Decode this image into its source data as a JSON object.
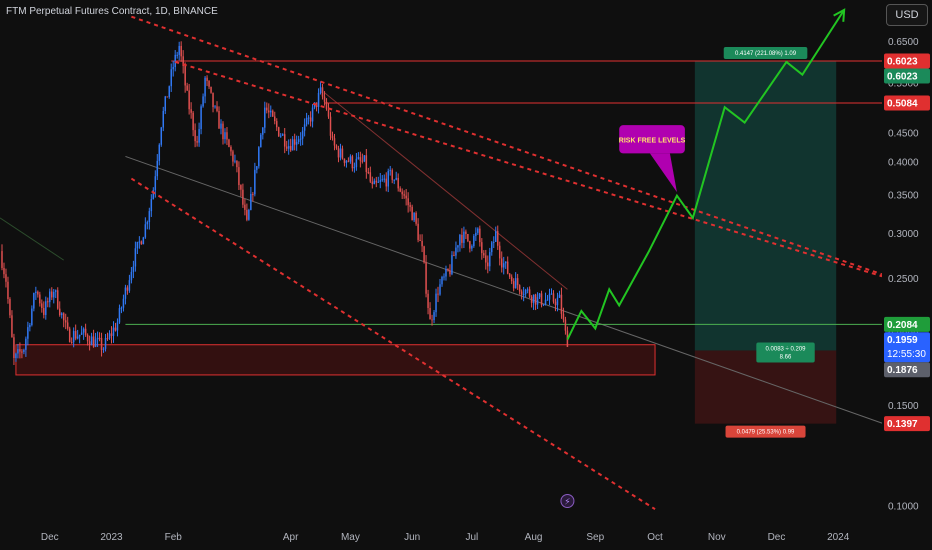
{
  "header": {
    "symbol_title": "FTM Perpetual Futures Contract, 1D, BINANCE",
    "currency_button": "USD"
  },
  "colors": {
    "background": "#0f0f0f",
    "candle_up": "#3179f5",
    "candle_down": "#e05050",
    "channel_line": "#e03030",
    "projection": "#22c522",
    "support_line": "#4caf50",
    "target_zone": "#123b35",
    "stop_zone": "#3b1414",
    "annotation_box": "#b000b0"
  },
  "chart_data": {
    "type": "candlestick",
    "title": "FTM Perpetual Futures Contract, 1D, BINANCE",
    "y_axis": {
      "scale": "log",
      "range": [
        0.094,
        0.77
      ],
      "ticks": [
        "0.1000",
        "0.1500",
        "0.2000",
        "0.2500",
        "0.3000",
        "0.3500",
        "0.4000",
        "0.4500",
        "0.5000",
        "0.5500",
        "0.6000",
        "0.6500"
      ]
    },
    "x_axis": {
      "start": "2022-11-06",
      "end": "2024-01-23",
      "ticks": [
        {
          "label": "Dec",
          "date": "2022-12-01"
        },
        {
          "label": "2023",
          "date": "2023-01-01"
        },
        {
          "label": "Feb",
          "date": "2023-02-01"
        },
        {
          "label": "Apr",
          "date": "2023-04-01"
        },
        {
          "label": "May",
          "date": "2023-05-01"
        },
        {
          "label": "Jun",
          "date": "2023-06-01"
        },
        {
          "label": "Jul",
          "date": "2023-07-01"
        },
        {
          "label": "Aug",
          "date": "2023-08-01"
        },
        {
          "label": "Sep",
          "date": "2023-09-01"
        },
        {
          "label": "Oct",
          "date": "2023-10-01"
        },
        {
          "label": "Nov",
          "date": "2023-11-01"
        },
        {
          "label": "Dec",
          "date": "2023-12-01"
        },
        {
          "label": "2024",
          "date": "2024-01-01"
        }
      ]
    },
    "price_path": [
      [
        "2022-11-06",
        0.28
      ],
      [
        "2022-11-09",
        0.25
      ],
      [
        "2022-11-13",
        0.18
      ],
      [
        "2022-11-18",
        0.19
      ],
      [
        "2022-11-24",
        0.24
      ],
      [
        "2022-11-28",
        0.22
      ],
      [
        "2022-12-03",
        0.24
      ],
      [
        "2022-12-10",
        0.2
      ],
      [
        "2022-12-18",
        0.2
      ],
      [
        "2022-12-28",
        0.19
      ],
      [
        "2023-01-04",
        0.21
      ],
      [
        "2023-01-12",
        0.27
      ],
      [
        "2023-01-18",
        0.31
      ],
      [
        "2023-01-22",
        0.36
      ],
      [
        "2023-01-26",
        0.47
      ],
      [
        "2023-02-01",
        0.59
      ],
      [
        "2023-02-04",
        0.64
      ],
      [
        "2023-02-08",
        0.52
      ],
      [
        "2023-02-13",
        0.43
      ],
      [
        "2023-02-17",
        0.56
      ],
      [
        "2023-02-22",
        0.49
      ],
      [
        "2023-02-27",
        0.44
      ],
      [
        "2023-03-04",
        0.4
      ],
      [
        "2023-03-10",
        0.31
      ],
      [
        "2023-03-14",
        0.38
      ],
      [
        "2023-03-19",
        0.5
      ],
      [
        "2023-03-25",
        0.46
      ],
      [
        "2023-03-31",
        0.43
      ],
      [
        "2023-04-07",
        0.45
      ],
      [
        "2023-04-12",
        0.49
      ],
      [
        "2023-04-16",
        0.53
      ],
      [
        "2023-04-19",
        0.5
      ],
      [
        "2023-04-22",
        0.43
      ],
      [
        "2023-04-27",
        0.41
      ],
      [
        "2023-05-02",
        0.4
      ],
      [
        "2023-05-08",
        0.4
      ],
      [
        "2023-05-12",
        0.36
      ],
      [
        "2023-05-17",
        0.37
      ],
      [
        "2023-05-22",
        0.38
      ],
      [
        "2023-05-28",
        0.35
      ],
      [
        "2023-06-02",
        0.32
      ],
      [
        "2023-06-06",
        0.28
      ],
      [
        "2023-06-10",
        0.21
      ],
      [
        "2023-06-14",
        0.24
      ],
      [
        "2023-06-20",
        0.26
      ],
      [
        "2023-06-25",
        0.3
      ],
      [
        "2023-06-30",
        0.29
      ],
      [
        "2023-07-04",
        0.3
      ],
      [
        "2023-07-08",
        0.26
      ],
      [
        "2023-07-13",
        0.3
      ],
      [
        "2023-07-16",
        0.27
      ],
      [
        "2023-07-21",
        0.25
      ],
      [
        "2023-07-27",
        0.24
      ],
      [
        "2023-08-03",
        0.23
      ],
      [
        "2023-08-10",
        0.23
      ],
      [
        "2023-08-14",
        0.23
      ],
      [
        "2023-08-17",
        0.2
      ],
      [
        "2023-08-18",
        0.196
      ]
    ],
    "projection_path": [
      [
        "2023-08-18",
        0.196
      ],
      [
        "2023-08-25",
        0.22
      ],
      [
        "2023-09-01",
        0.205
      ],
      [
        "2023-09-08",
        0.24
      ],
      [
        "2023-09-13",
        0.225
      ],
      [
        "2023-09-28",
        0.28
      ],
      [
        "2023-10-12",
        0.35
      ],
      [
        "2023-10-20",
        0.32
      ],
      [
        "2023-11-05",
        0.5
      ],
      [
        "2023-11-15",
        0.47
      ],
      [
        "2023-12-06",
        0.6
      ],
      [
        "2023-12-14",
        0.57
      ],
      [
        "2024-01-04",
        0.74
      ]
    ],
    "horizontal_levels": [
      {
        "price": 0.6023,
        "label": "0.6023",
        "color": "#e03030",
        "from_date": "2023-01-31"
      },
      {
        "price": 0.5084,
        "label": "0.5084",
        "color": "#e03030",
        "from_date": "2023-04-18"
      },
      {
        "price": 0.2084,
        "label": "0.2084",
        "color": "#4caf50",
        "from_date": "2023-01-08"
      }
    ],
    "price_labels": [
      {
        "text": "0.6023",
        "price": 0.6023,
        "color": "#e03030"
      },
      {
        "text": "0.6023",
        "price": 0.6023,
        "color": "#1b8a5a"
      },
      {
        "text": "0.5084",
        "price": 0.5084,
        "color": "#e03030"
      },
      {
        "text": "0.2084",
        "price": 0.2084,
        "color": "#1f9d3a"
      },
      {
        "text": "0.1959",
        "price": 0.1959,
        "color": "#2962ff",
        "subtext": "12:55:30"
      },
      {
        "text": "0.1876",
        "price": 0.1876,
        "color": "#5d606b"
      },
      {
        "text": "0.1397",
        "price": 0.1397,
        "color": "#e03030"
      }
    ],
    "channel_lines": [
      {
        "from": [
          "2023-01-11",
          0.72
        ],
        "to": [
          "2024-01-23",
          0.255
        ]
      },
      {
        "from": [
          "2023-01-11",
          0.375
        ],
        "to": [
          "2023-10-01",
          0.099
        ]
      },
      {
        "from": [
          "2023-02-02",
          0.6
        ],
        "to": [
          "2024-01-23",
          0.253
        ]
      }
    ],
    "trend_lines": [
      {
        "from": [
          "2022-11-06",
          0.32
        ],
        "to": [
          "2022-12-08",
          0.27
        ],
        "color": "#2c4c2c"
      },
      {
        "from": [
          "2023-01-08",
          0.41
        ],
        "to": [
          "2024-01-23",
          0.14
        ],
        "color": "#666666"
      },
      {
        "from": [
          "2023-04-18",
          0.53
        ],
        "to": [
          "2023-08-18",
          0.24
        ],
        "color": "#803030"
      }
    ],
    "support_zone": {
      "from": "2022-11-14",
      "to": "2023-10-01",
      "top": 0.192,
      "bottom": 0.17
    },
    "position": {
      "start": "2023-10-21",
      "end": "2023-12-31",
      "entry": 0.1876,
      "target": 0.6023,
      "stop": 0.1397,
      "target_label": "0.4147 (221.08%) 1.09",
      "center_label_line1": "0.0083 ÷ 0.209",
      "center_label_line2": "8.66",
      "stop_label": "0.0479 (25.53%) 0.99"
    },
    "annotation": {
      "text": "RISK FREE LEVELS",
      "box_left_date": "2023-09-13",
      "box_right_date": "2023-10-16",
      "box_top": 0.465,
      "box_bottom": 0.415,
      "pointer": [
        "2023-10-12",
        0.355
      ]
    },
    "marker": {
      "date": "2023-08-18",
      "price": 0.1023,
      "symbol": "⚡"
    }
  }
}
